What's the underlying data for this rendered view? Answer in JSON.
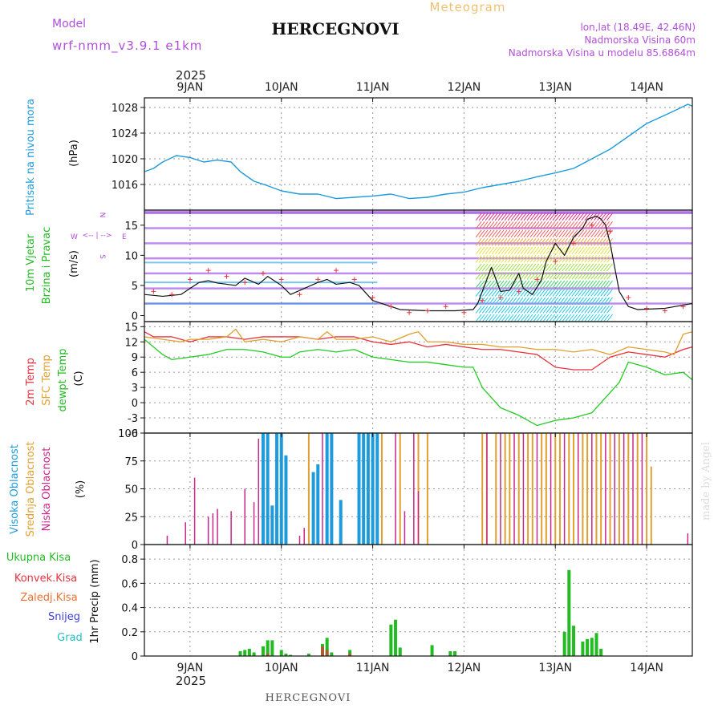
{
  "header": {
    "model_label": "Model",
    "model_name": "wrf-nmm_v3.9.1 e1km",
    "product": "Meteogram",
    "station": "HERCEGNOVI",
    "lonlat": "lon,lat (18.49E, 42.46N)",
    "elevation": "Nadmorska Visina 60m",
    "model_elevation": "Nadmorska Visina u modelu 85.6864m",
    "footer_station": "HERCEGNOVI",
    "watermark": "made by Angel"
  },
  "time_axis": {
    "year": "2025",
    "day_labels": [
      "9JAN",
      "10JAN",
      "11JAN",
      "12JAN",
      "13JAN",
      "14JAN"
    ],
    "range_days": [
      0.5,
      6.5
    ]
  },
  "colors": {
    "pressure": "#1e9bdc",
    "temp2m": "#e8323c",
    "sfc": "#e0a030",
    "dew": "#22cc22",
    "high_cloud": "#1e9bdc",
    "mid_cloud": "#e0a030",
    "low_cloud": "#c8288c",
    "precip_total": "#22bb22",
    "precip_conv": "#e8323c",
    "accent_purple": "#b050d8"
  },
  "panel_labels": {
    "pressure": {
      "title": "Pritisak na nivou mora",
      "unit": "(hPa)"
    },
    "wind": {
      "title1": "10m Vjetar",
      "title2": "Brzina i Pravac",
      "unit": "(m/s)",
      "compass_n": "N",
      "compass_w": "W",
      "compass_e": "E",
      "compass_s": "S",
      "compass_arrows": "<-- | -->"
    },
    "temp": {
      "l1": "2m Temp",
      "l2": "SFC Temp",
      "l3": "dewpt Temp",
      "unit": "(C)"
    },
    "cloud": {
      "l1": "Visoka Oblacnost",
      "l2": "Srednja Oblacnost",
      "l3": "Niska Oblacnost",
      "unit": "(%)"
    },
    "precip": {
      "l1": "Ukupna Kisa",
      "l2": "Konvek.Kisa",
      "l3": "Zaledj.Kisa",
      "l4": "Snijeg",
      "l5": "Grad",
      "unit": "1hr Precip (mm)"
    }
  },
  "chart_data": [
    {
      "type": "line",
      "title": "Pritisak na nivou mora",
      "ylabel": "(hPa)",
      "ylim": [
        1012,
        1029.5
      ],
      "yticks": [
        1016,
        1020,
        1024,
        1028
      ],
      "series": [
        {
          "name": "",
          "x": [
            0.5,
            0.6,
            0.7,
            0.85,
            1.0,
            1.15,
            1.3,
            1.45,
            1.55,
            1.7,
            1.85,
            2.0,
            2.2,
            2.4,
            2.6,
            2.8,
            3.0,
            3.2,
            3.4,
            3.6,
            3.8,
            4.0,
            4.2,
            4.4,
            4.6,
            4.8,
            5.0,
            5.2,
            5.4,
            5.6,
            5.8,
            6.0,
            6.2,
            6.35,
            6.45,
            6.5
          ],
          "values": [
            1018,
            1018.5,
            1019.5,
            1020.5,
            1020.2,
            1019.5,
            1019.8,
            1019.5,
            1018,
            1016.5,
            1015.8,
            1015,
            1014.5,
            1014.5,
            1013.8,
            1014,
            1014.2,
            1014.5,
            1013.8,
            1014,
            1014.5,
            1014.8,
            1015.5,
            1016,
            1016.5,
            1017.2,
            1017.8,
            1018.5,
            1020,
            1021.5,
            1023.5,
            1025.5,
            1026.8,
            1027.8,
            1028.5,
            1028.2
          ]
        }
      ]
    },
    {
      "type": "line",
      "title": "10m Vjetar Brzina i Pravac",
      "ylabel": "(m/s)",
      "ylim": [
        -1,
        17.5
      ],
      "yticks": [
        0,
        5,
        10,
        15
      ],
      "series": [
        {
          "name": "",
          "x": [
            0.5,
            0.7,
            0.9,
            1.0,
            1.1,
            1.2,
            1.3,
            1.5,
            1.6,
            1.75,
            1.85,
            2.0,
            2.1,
            2.25,
            2.4,
            2.5,
            2.6,
            2.75,
            2.85,
            3.0,
            3.3,
            3.6,
            3.9,
            4.1,
            4.15,
            4.2,
            4.3,
            4.4,
            4.5,
            4.6,
            4.65,
            4.75,
            4.85,
            4.9,
            5.0,
            5.1,
            5.2,
            5.3,
            5.35,
            5.45,
            5.5,
            5.55,
            5.6,
            5.65,
            5.7,
            5.8,
            5.9,
            6.2,
            6.5
          ],
          "values": [
            3.5,
            3.2,
            3.5,
            4.5,
            5.5,
            5.8,
            5.4,
            5,
            6.2,
            5.2,
            6.5,
            5,
            3.5,
            4.5,
            5.5,
            6,
            5.2,
            5.5,
            5,
            2.5,
            1,
            0.8,
            0.8,
            1,
            2,
            4,
            8,
            4,
            4.2,
            7,
            4.5,
            3.5,
            6,
            9,
            12,
            10,
            13,
            14.5,
            16,
            16.5,
            16,
            15,
            12,
            8,
            4,
            1.5,
            1,
            1.2,
            2
          ]
        },
        {
          "name": "",
          "x": [
            0.6,
            0.8,
            1.0,
            1.2,
            1.4,
            1.6,
            1.8,
            2.0,
            2.2,
            2.4,
            2.6,
            2.8,
            3.0,
            3.2,
            3.4,
            3.6,
            3.8,
            4.0,
            4.2,
            4.4,
            4.6,
            4.8,
            5.0,
            5.2,
            5.4,
            5.6,
            5.8,
            6.0,
            6.2,
            6.4
          ],
          "values": [
            4,
            3.5,
            6,
            7.5,
            6.5,
            5.5,
            7,
            6,
            3.5,
            6,
            7.5,
            6,
            3,
            1.5,
            0.5,
            0.8,
            1.5,
            0.5,
            2.5,
            3,
            4,
            6,
            9,
            12,
            15,
            14,
            3,
            1.2,
            0.8,
            1.5
          ]
        }
      ]
    },
    {
      "type": "line",
      "title": "",
      "ylabel": "(C)",
      "ylim": [
        -6,
        16
      ],
      "yticks": [
        -6,
        -3,
        0,
        3,
        6,
        9,
        12,
        15
      ],
      "series": [
        {
          "name": "2m Temp",
          "x": [
            0.5,
            0.6,
            0.8,
            1.0,
            1.2,
            1.4,
            1.6,
            1.8,
            2.0,
            2.2,
            2.4,
            2.6,
            2.8,
            3.0,
            3.2,
            3.4,
            3.6,
            3.8,
            4.0,
            4.2,
            4.4,
            4.6,
            4.8,
            5.0,
            5.2,
            5.4,
            5.6,
            5.8,
            6.0,
            6.2,
            6.4,
            6.5
          ],
          "values": [
            14,
            13,
            13,
            12,
            13,
            13,
            12.5,
            13,
            13,
            13,
            12.5,
            13,
            13,
            12,
            11.5,
            12,
            11,
            11.5,
            11,
            10.5,
            10.5,
            10,
            9.5,
            7,
            6.5,
            6.5,
            9,
            10,
            9.5,
            9,
            10.5,
            11
          ]
        },
        {
          "name": "SFC Temp",
          "x": [
            0.5,
            0.7,
            0.9,
            1.0,
            1.2,
            1.4,
            1.5,
            1.6,
            1.8,
            2.0,
            2.2,
            2.4,
            2.5,
            2.6,
            2.8,
            3.0,
            3.2,
            3.4,
            3.5,
            3.6,
            3.8,
            4.0,
            4.2,
            4.4,
            4.6,
            4.8,
            5.0,
            5.2,
            5.4,
            5.6,
            5.8,
            6.0,
            6.2,
            6.3,
            6.4,
            6.5
          ],
          "values": [
            13,
            12.5,
            12,
            12.5,
            12.5,
            13,
            14.5,
            12,
            12.5,
            12,
            13,
            12.5,
            14,
            12.5,
            12.5,
            13,
            12,
            13.5,
            14,
            12,
            12,
            11.5,
            11.5,
            11,
            11,
            10.5,
            10.5,
            10,
            10.5,
            9.5,
            11,
            10.5,
            10,
            9.5,
            13.5,
            14
          ]
        },
        {
          "name": "dewpt Temp",
          "x": [
            0.5,
            0.6,
            0.7,
            0.8,
            1.0,
            1.2,
            1.4,
            1.6,
            1.8,
            2.0,
            2.1,
            2.2,
            2.4,
            2.6,
            2.8,
            3.0,
            3.2,
            3.4,
            3.6,
            3.8,
            4.0,
            4.1,
            4.2,
            4.4,
            4.6,
            4.8,
            5.0,
            5.2,
            5.4,
            5.5,
            5.6,
            5.7,
            5.8,
            6.0,
            6.2,
            6.4,
            6.5
          ],
          "values": [
            12.5,
            11,
            9.5,
            8.5,
            9,
            9.5,
            10.5,
            10.5,
            10,
            9,
            9,
            10,
            10.5,
            10,
            10.5,
            9,
            8.5,
            8,
            8,
            7.5,
            7,
            7,
            3,
            -1,
            -2.5,
            -4.5,
            -3.5,
            -3,
            -2,
            0,
            2,
            4,
            8,
            7,
            5.5,
            6,
            4.5
          ]
        }
      ]
    },
    {
      "type": "bar",
      "title": "",
      "ylabel": "(%)",
      "ylim": [
        0,
        100
      ],
      "yticks": [
        0,
        25,
        50,
        75,
        100
      ],
      "series": [
        {
          "name": "Visoka Oblacnost",
          "x": [
            1.8,
            1.85,
            1.9,
            1.95,
            2.0,
            2.05,
            2.35,
            2.4,
            2.5,
            2.55,
            2.65,
            2.85,
            2.9,
            2.95,
            3.0,
            3.05
          ],
          "values": [
            100,
            100,
            35,
            100,
            100,
            80,
            65,
            72,
            100,
            100,
            40,
            100,
            100,
            100,
            100,
            100
          ]
        },
        {
          "name": "Srednja Oblacnost",
          "x": [
            2.3,
            3.1,
            3.3,
            3.5,
            3.6,
            4.2,
            4.25,
            4.35,
            4.45,
            4.5,
            4.6,
            4.7,
            4.75,
            4.85,
            4.9,
            5.0,
            5.05,
            5.15,
            5.2,
            5.3,
            5.35,
            5.45,
            5.5,
            5.6,
            5.7,
            5.8,
            5.9,
            6.0,
            6.05
          ],
          "values": [
            100,
            100,
            100,
            100,
            100,
            100,
            100,
            100,
            100,
            100,
            100,
            100,
            100,
            100,
            100,
            100,
            100,
            100,
            100,
            100,
            100,
            100,
            100,
            100,
            100,
            100,
            100,
            100,
            70
          ]
        },
        {
          "name": "Niska Oblacnost",
          "x": [
            0.75,
            0.95,
            1.05,
            1.2,
            1.25,
            1.3,
            1.45,
            1.6,
            1.7,
            1.75,
            2.2,
            2.25,
            2.45,
            3.25,
            3.35,
            3.45,
            3.5,
            4.25,
            4.4,
            4.55,
            4.65,
            4.8,
            4.95,
            5.1,
            5.25,
            5.4,
            5.55,
            5.65,
            5.75,
            5.85,
            5.95,
            6.45
          ],
          "values": [
            8,
            20,
            60,
            25,
            28,
            32,
            30,
            50,
            38,
            95,
            8,
            15,
            100,
            100,
            30,
            100,
            48,
            100,
            100,
            100,
            100,
            100,
            100,
            100,
            100,
            100,
            100,
            100,
            100,
            100,
            100,
            10
          ]
        }
      ]
    },
    {
      "type": "bar",
      "title": "",
      "ylabel": "1hr Precip (mm)",
      "ylim": [
        0,
        0.92
      ],
      "yticks": [
        0,
        0.2,
        0.4,
        0.6,
        0.8
      ],
      "series": [
        {
          "name": "Ukupna Kisa",
          "x": [
            1.55,
            1.6,
            1.65,
            1.7,
            1.8,
            1.85,
            1.9,
            2.0,
            2.05,
            2.1,
            2.3,
            2.45,
            2.5,
            2.55,
            2.75,
            3.2,
            3.25,
            3.3,
            3.65,
            3.85,
            3.9,
            5.1,
            5.15,
            5.2,
            5.3,
            5.35,
            5.4,
            5.45,
            5.5
          ],
          "values": [
            0.04,
            0.05,
            0.06,
            0.03,
            0.08,
            0.13,
            0.13,
            0.05,
            0.02,
            0.01,
            0.02,
            0.1,
            0.15,
            0.03,
            0.05,
            0.26,
            0.3,
            0.07,
            0.09,
            0.04,
            0.04,
            0.2,
            0.71,
            0.25,
            0.12,
            0.14,
            0.15,
            0.19,
            0.06
          ]
        },
        {
          "name": "Konvek.Kisa",
          "x": [
            1.85,
            2.45,
            2.5,
            2.75
          ],
          "values": [
            0.02,
            0.08,
            0.05,
            0.02
          ]
        }
      ]
    }
  ]
}
